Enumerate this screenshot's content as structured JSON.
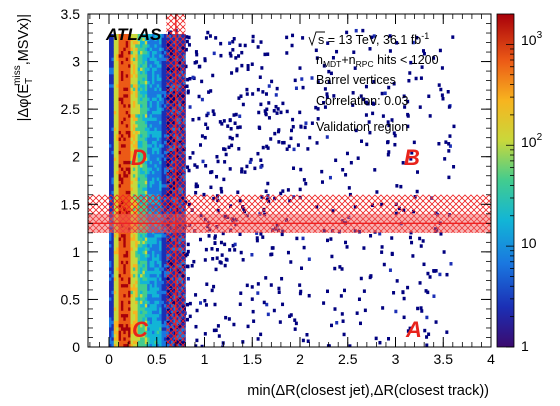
{
  "chart_data": {
    "type": "heatmap",
    "experiment_label": "ATLAS",
    "annotations": [
      {
        "sqrt_s": "s",
        "text_pre": " = 13 TeV, 36.1 fb",
        "text_sup": "-1"
      },
      {
        "n1": "n",
        "sub1": "MDT",
        "plus": "+n",
        "sub2": "RPC",
        "rest": " hits < 1200"
      },
      {
        "text": "Barrel vertices"
      },
      {
        "text": "Correlation: 0.03"
      },
      {
        "text": "Validation region"
      }
    ],
    "region_labels": {
      "A": "A",
      "B": "B",
      "C": "C",
      "D": "D"
    },
    "xlabel": {
      "pre": "min(",
      "delta1": "Δ",
      "mid": "R(closest jet),",
      "delta2": "Δ",
      "post": "R(closest track))"
    },
    "ylabel": {
      "pre": "|Δφ(E",
      "sub": "T",
      "sup": "miss",
      "post": ",MSVx)|"
    },
    "xlim": [
      -0.22,
      4.0
    ],
    "ylim": [
      0.0,
      3.5
    ],
    "xticks": [
      "0",
      "0.5",
      "1",
      "1.5",
      "2",
      "2.5",
      "3",
      "3.5",
      "4"
    ],
    "yticks": [
      "0",
      "0.5",
      "1",
      "1.5",
      "2",
      "2.5",
      "3",
      "3.5"
    ],
    "colorbar": {
      "scale": "log",
      "range": [
        1,
        2000
      ],
      "labels": [
        {
          "base": "1",
          "exp": ""
        },
        {
          "base": "10",
          "exp": ""
        },
        {
          "base": "10",
          "exp": "2"
        },
        {
          "base": "10",
          "exp": "3"
        }
      ]
    },
    "cut_lines": {
      "x_cut": 0.7,
      "y_cut": 1.3
    },
    "systematic_bands": {
      "x_band": [
        0.6,
        0.8
      ],
      "y_band": [
        1.2,
        1.6
      ]
    },
    "colors": {
      "hatch": "#ee2222",
      "region_label": "#e8231c",
      "point": "#00007f"
    }
  }
}
